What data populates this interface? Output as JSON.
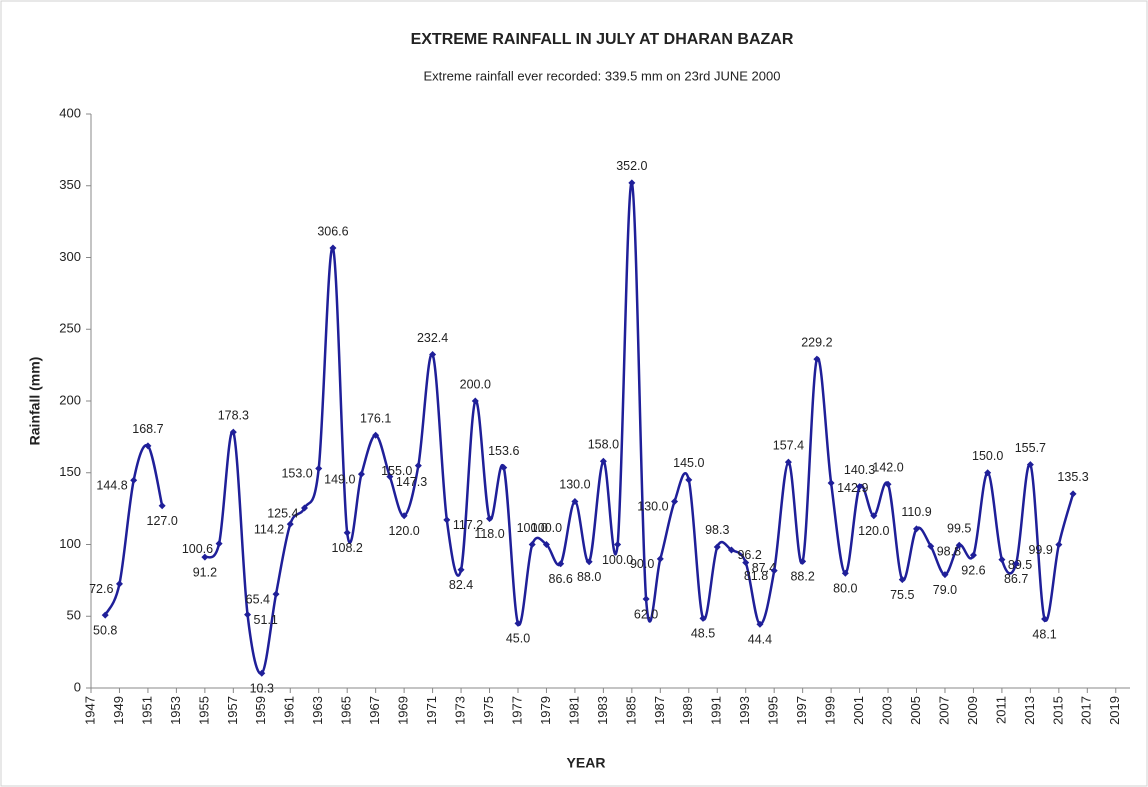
{
  "chart_data": {
    "type": "line",
    "title": "EXTREME RAINFALL IN JULY AT DHARAN BAZAR",
    "subtitle": "Extreme rainfall ever recorded: 339.5 mm on 23rd JUNE 2000",
    "x_label": "YEAR",
    "y_label": "Rainfall (mm)",
    "x": [
      1948,
      1949,
      1950,
      1951,
      1952,
      1953,
      1954,
      1955,
      1956,
      1957,
      1958,
      1959,
      1960,
      1961,
      1962,
      1963,
      1964,
      1965,
      1966,
      1967,
      1968,
      1969,
      1970,
      1971,
      1972,
      1973,
      1974,
      1975,
      1976,
      1977,
      1978,
      1979,
      1980,
      1981,
      1982,
      1983,
      1984,
      1985,
      1986,
      1987,
      1988,
      1989,
      1990,
      1991,
      1992,
      1993,
      1994,
      1995,
      1996,
      1997,
      1998,
      1999,
      2000,
      2001,
      2002,
      2003,
      2004,
      2005,
      2006,
      2007,
      2008,
      2009,
      2010,
      2011,
      2012,
      2013,
      2014,
      2015,
      2016
    ],
    "values": [
      50.8,
      72.6,
      144.8,
      168.7,
      127.0,
      null,
      null,
      91.2,
      100.6,
      178.3,
      51.1,
      10.3,
      65.4,
      114.2,
      125.4,
      153.0,
      306.6,
      108.2,
      149.0,
      176.1,
      147.3,
      120.0,
      155.0,
      232.4,
      117.2,
      82.4,
      200.0,
      118.0,
      153.6,
      45.0,
      100.0,
      100.0,
      86.6,
      130.0,
      88.0,
      158.0,
      100.0,
      352.0,
      62.0,
      90.0,
      130.0,
      145.0,
      48.5,
      98.3,
      96.2,
      87.4,
      44.4,
      81.8,
      157.4,
      88.2,
      229.2,
      142.9,
      80.0,
      140.3,
      120.0,
      142.0,
      75.5,
      110.9,
      98.8,
      79.0,
      99.5,
      92.6,
      150.0,
      89.5,
      86.7,
      155.7,
      48.1,
      99.9,
      135.3
    ],
    "value_labels": [
      "50.8",
      "72.6",
      "144.8",
      "168.7",
      "127.0",
      null,
      null,
      "91.2",
      "100.6",
      "178.3",
      "51.1",
      "10.3",
      "65.4",
      "114.2",
      "125.4",
      "153.0",
      "306.6",
      "108.2",
      "149.0",
      "176.1",
      "147.3",
      "120.0",
      "155.0",
      "232.4",
      "117.2",
      "82.4",
      "200.0",
      "118.0",
      "153.6",
      "45.0",
      "100.0",
      "100.0",
      "86.6",
      "130.0",
      "88.0",
      "158.0",
      "100.0",
      "352.0",
      "62.0",
      "90.0",
      "130.0",
      "145.0",
      "48.5",
      "98.3",
      "96.2",
      "87.4",
      "44.4",
      "81.8",
      "157.4",
      "88.2",
      "229.2",
      "142.9",
      "80.0",
      "140.3",
      "120.0",
      "142.0",
      "75.5",
      "110.9",
      "98.8",
      "79.0",
      "99.5",
      "92.6",
      "150.0",
      "89.5",
      "86.7",
      "155.7",
      "48.1",
      "99.9",
      "135.3"
    ],
    "color": "#1f1f99",
    "xlim": [
      1947,
      2020
    ],
    "xticks": [
      1947,
      1949,
      1951,
      1953,
      1955,
      1957,
      1959,
      1961,
      1963,
      1965,
      1967,
      1969,
      1971,
      1973,
      1975,
      1977,
      1979,
      1981,
      1983,
      1985,
      1987,
      1989,
      1991,
      1993,
      1995,
      1997,
      1999,
      2001,
      2003,
      2005,
      2007,
      2009,
      2011,
      2013,
      2015,
      2017,
      2019
    ],
    "ylim": [
      0,
      400
    ],
    "yticks": [
      0,
      50,
      100,
      150,
      200,
      250,
      300,
      350,
      400
    ]
  }
}
